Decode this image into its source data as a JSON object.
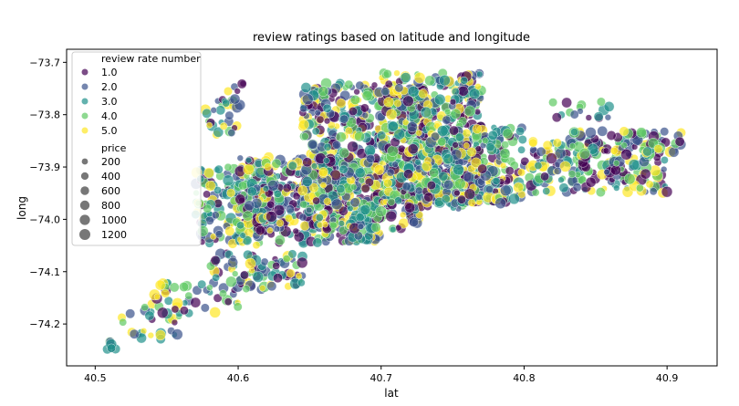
{
  "chart_data": {
    "type": "scatter",
    "title": "review ratings based on latitude and longitude",
    "xlabel": "lat",
    "ylabel": "long",
    "xlim": [
      40.48,
      40.935
    ],
    "ylim": [
      -74.28,
      -73.675
    ],
    "xticks": [
      40.5,
      40.6,
      40.7,
      40.8,
      40.9
    ],
    "xtick_labels": [
      "40.5",
      "40.6",
      "40.7",
      "40.8",
      "40.9"
    ],
    "yticks": [
      -73.7,
      -73.8,
      -73.9,
      -74.0,
      -74.1,
      -74.2
    ],
    "ytick_labels": [
      "−73.7",
      "−73.8",
      "−73.9",
      "−74.0",
      "−74.1",
      "−74.2"
    ],
    "grid": false,
    "legend_position": "top-left",
    "hue_title": "review rate number",
    "hue_levels": [
      {
        "label": "1.0",
        "color": "#440154"
      },
      {
        "label": "2.0",
        "color": "#3b528b"
      },
      {
        "label": "3.0",
        "color": "#21918c"
      },
      {
        "label": "4.0",
        "color": "#5ec962"
      },
      {
        "label": "5.0",
        "color": "#fde725"
      }
    ],
    "size_title": "price",
    "size_levels": [
      {
        "label": "200",
        "value": 200
      },
      {
        "label": "400",
        "value": 400
      },
      {
        "label": "600",
        "value": 600
      },
      {
        "label": "800",
        "value": 800
      },
      {
        "label": "1000",
        "value": 1000
      },
      {
        "label": "1200",
        "value": 1200
      }
    ],
    "point_alpha": 0.7,
    "point_count_estimate": 2400,
    "point_clusters": [
      {
        "x": [
          40.505,
          40.515
        ],
        "y": [
          -74.25,
          -74.232
        ],
        "density": 0.3
      },
      {
        "x": [
          40.515,
          40.56
        ],
        "y": [
          -74.23,
          -74.16
        ],
        "density": 0.35
      },
      {
        "x": [
          40.54,
          40.6
        ],
        "y": [
          -74.18,
          -74.12
        ],
        "density": 0.45
      },
      {
        "x": [
          40.58,
          40.645
        ],
        "y": [
          -74.135,
          -74.065
        ],
        "density": 0.75
      },
      {
        "x": [
          40.57,
          40.62
        ],
        "y": [
          -74.05,
          -73.9
        ],
        "density": 0.85
      },
      {
        "x": [
          40.575,
          40.6
        ],
        "y": [
          -73.84,
          -73.77
        ],
        "density": 0.55
      },
      {
        "x": [
          40.59,
          40.605
        ],
        "y": [
          -73.785,
          -73.74
        ],
        "density": 0.55
      },
      {
        "x": [
          40.6,
          40.7
        ],
        "y": [
          -74.045,
          -73.88
        ],
        "density": 1.0
      },
      {
        "x": [
          40.645,
          40.73
        ],
        "y": [
          -74.02,
          -73.74
        ],
        "density": 1.0
      },
      {
        "x": [
          40.7,
          40.77
        ],
        "y": [
          -73.98,
          -73.72
        ],
        "density": 1.0
      },
      {
        "x": [
          40.73,
          40.8
        ],
        "y": [
          -73.97,
          -73.82
        ],
        "density": 0.95
      },
      {
        "x": [
          40.8,
          40.9
        ],
        "y": [
          -73.95,
          -73.85
        ],
        "density": 0.75
      },
      {
        "x": [
          40.83,
          40.91
        ],
        "y": [
          -73.88,
          -73.83
        ],
        "density": 0.65
      },
      {
        "x": [
          40.82,
          40.86
        ],
        "y": [
          -73.81,
          -73.775
        ],
        "density": 0.45
      }
    ]
  }
}
